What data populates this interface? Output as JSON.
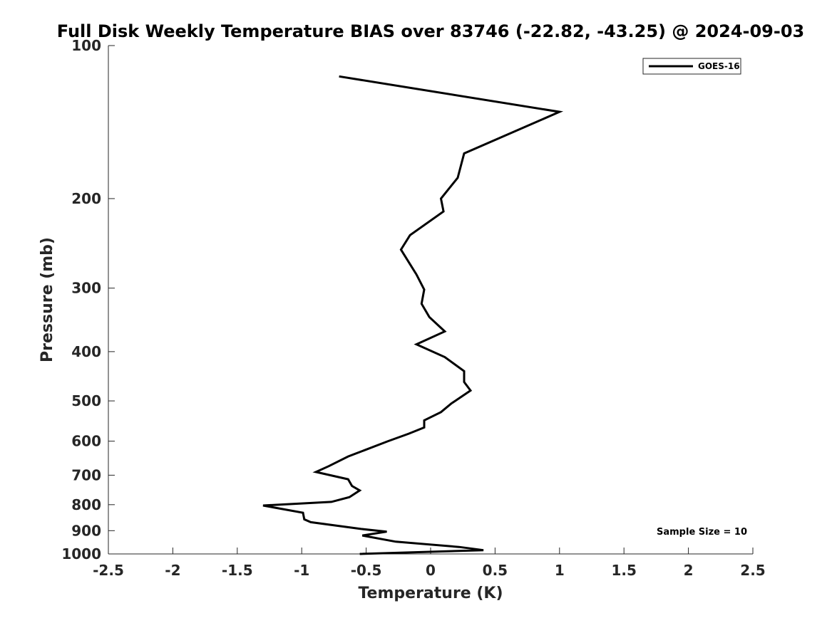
{
  "chart_data": {
    "type": "line",
    "title": "Full Disk Weekly Temperature BIAS over 83746 (-22.82, -43.25) @ 2024-09-03",
    "xlabel": "Temperature (K)",
    "ylabel": "Pressure (mb)",
    "xlim": [
      -2.5,
      2.5
    ],
    "ylim": [
      1000,
      100
    ],
    "y_scale": "log",
    "y_reversed": true,
    "x_ticks": [
      "-2.5",
      "-2",
      "-1.5",
      "-1",
      "-0.5",
      "0",
      "0.5",
      "1",
      "1.5",
      "2",
      "2.5"
    ],
    "y_ticks": [
      "100",
      "200",
      "300",
      "400",
      "500",
      "600",
      "700",
      "800",
      "900",
      "1000"
    ],
    "grid": false,
    "legend": {
      "position": "top-right",
      "entries": [
        "GOES-16"
      ]
    },
    "annotation": "Sample Size = 10",
    "series": [
      {
        "name": "GOES-16",
        "color": "#000000",
        "points": [
          [
            -0.71,
            115
          ],
          [
            1.0,
            135
          ],
          [
            0.26,
            163
          ],
          [
            0.21,
            182
          ],
          [
            0.08,
            200
          ],
          [
            0.1,
            212
          ],
          [
            -0.16,
            236
          ],
          [
            -0.23,
            252
          ],
          [
            -0.11,
            282
          ],
          [
            -0.05,
            302
          ],
          [
            -0.07,
            322
          ],
          [
            -0.01,
            342
          ],
          [
            0.11,
            365
          ],
          [
            -0.11,
            387
          ],
          [
            0.11,
            410
          ],
          [
            0.26,
            437
          ],
          [
            0.26,
            459
          ],
          [
            0.31,
            477
          ],
          [
            0.16,
            506
          ],
          [
            0.08,
            526
          ],
          [
            -0.05,
            546
          ],
          [
            -0.05,
            564
          ],
          [
            -0.17,
            580
          ],
          [
            -0.33,
            600
          ],
          [
            -0.52,
            626
          ],
          [
            -0.64,
            643
          ],
          [
            -0.79,
            672
          ],
          [
            -0.89,
            690
          ],
          [
            -0.64,
            713
          ],
          [
            -0.61,
            735
          ],
          [
            -0.55,
            750
          ],
          [
            -0.63,
            773
          ],
          [
            -0.77,
            790
          ],
          [
            -1.3,
            803
          ],
          [
            -0.99,
            830
          ],
          [
            -0.98,
            855
          ],
          [
            -0.93,
            866
          ],
          [
            -0.54,
            893
          ],
          [
            -0.34,
            904
          ],
          [
            -0.53,
            920
          ],
          [
            -0.27,
            946
          ],
          [
            0.22,
            969
          ],
          [
            0.41,
            983
          ],
          [
            -0.55,
            1000
          ]
        ]
      }
    ]
  }
}
